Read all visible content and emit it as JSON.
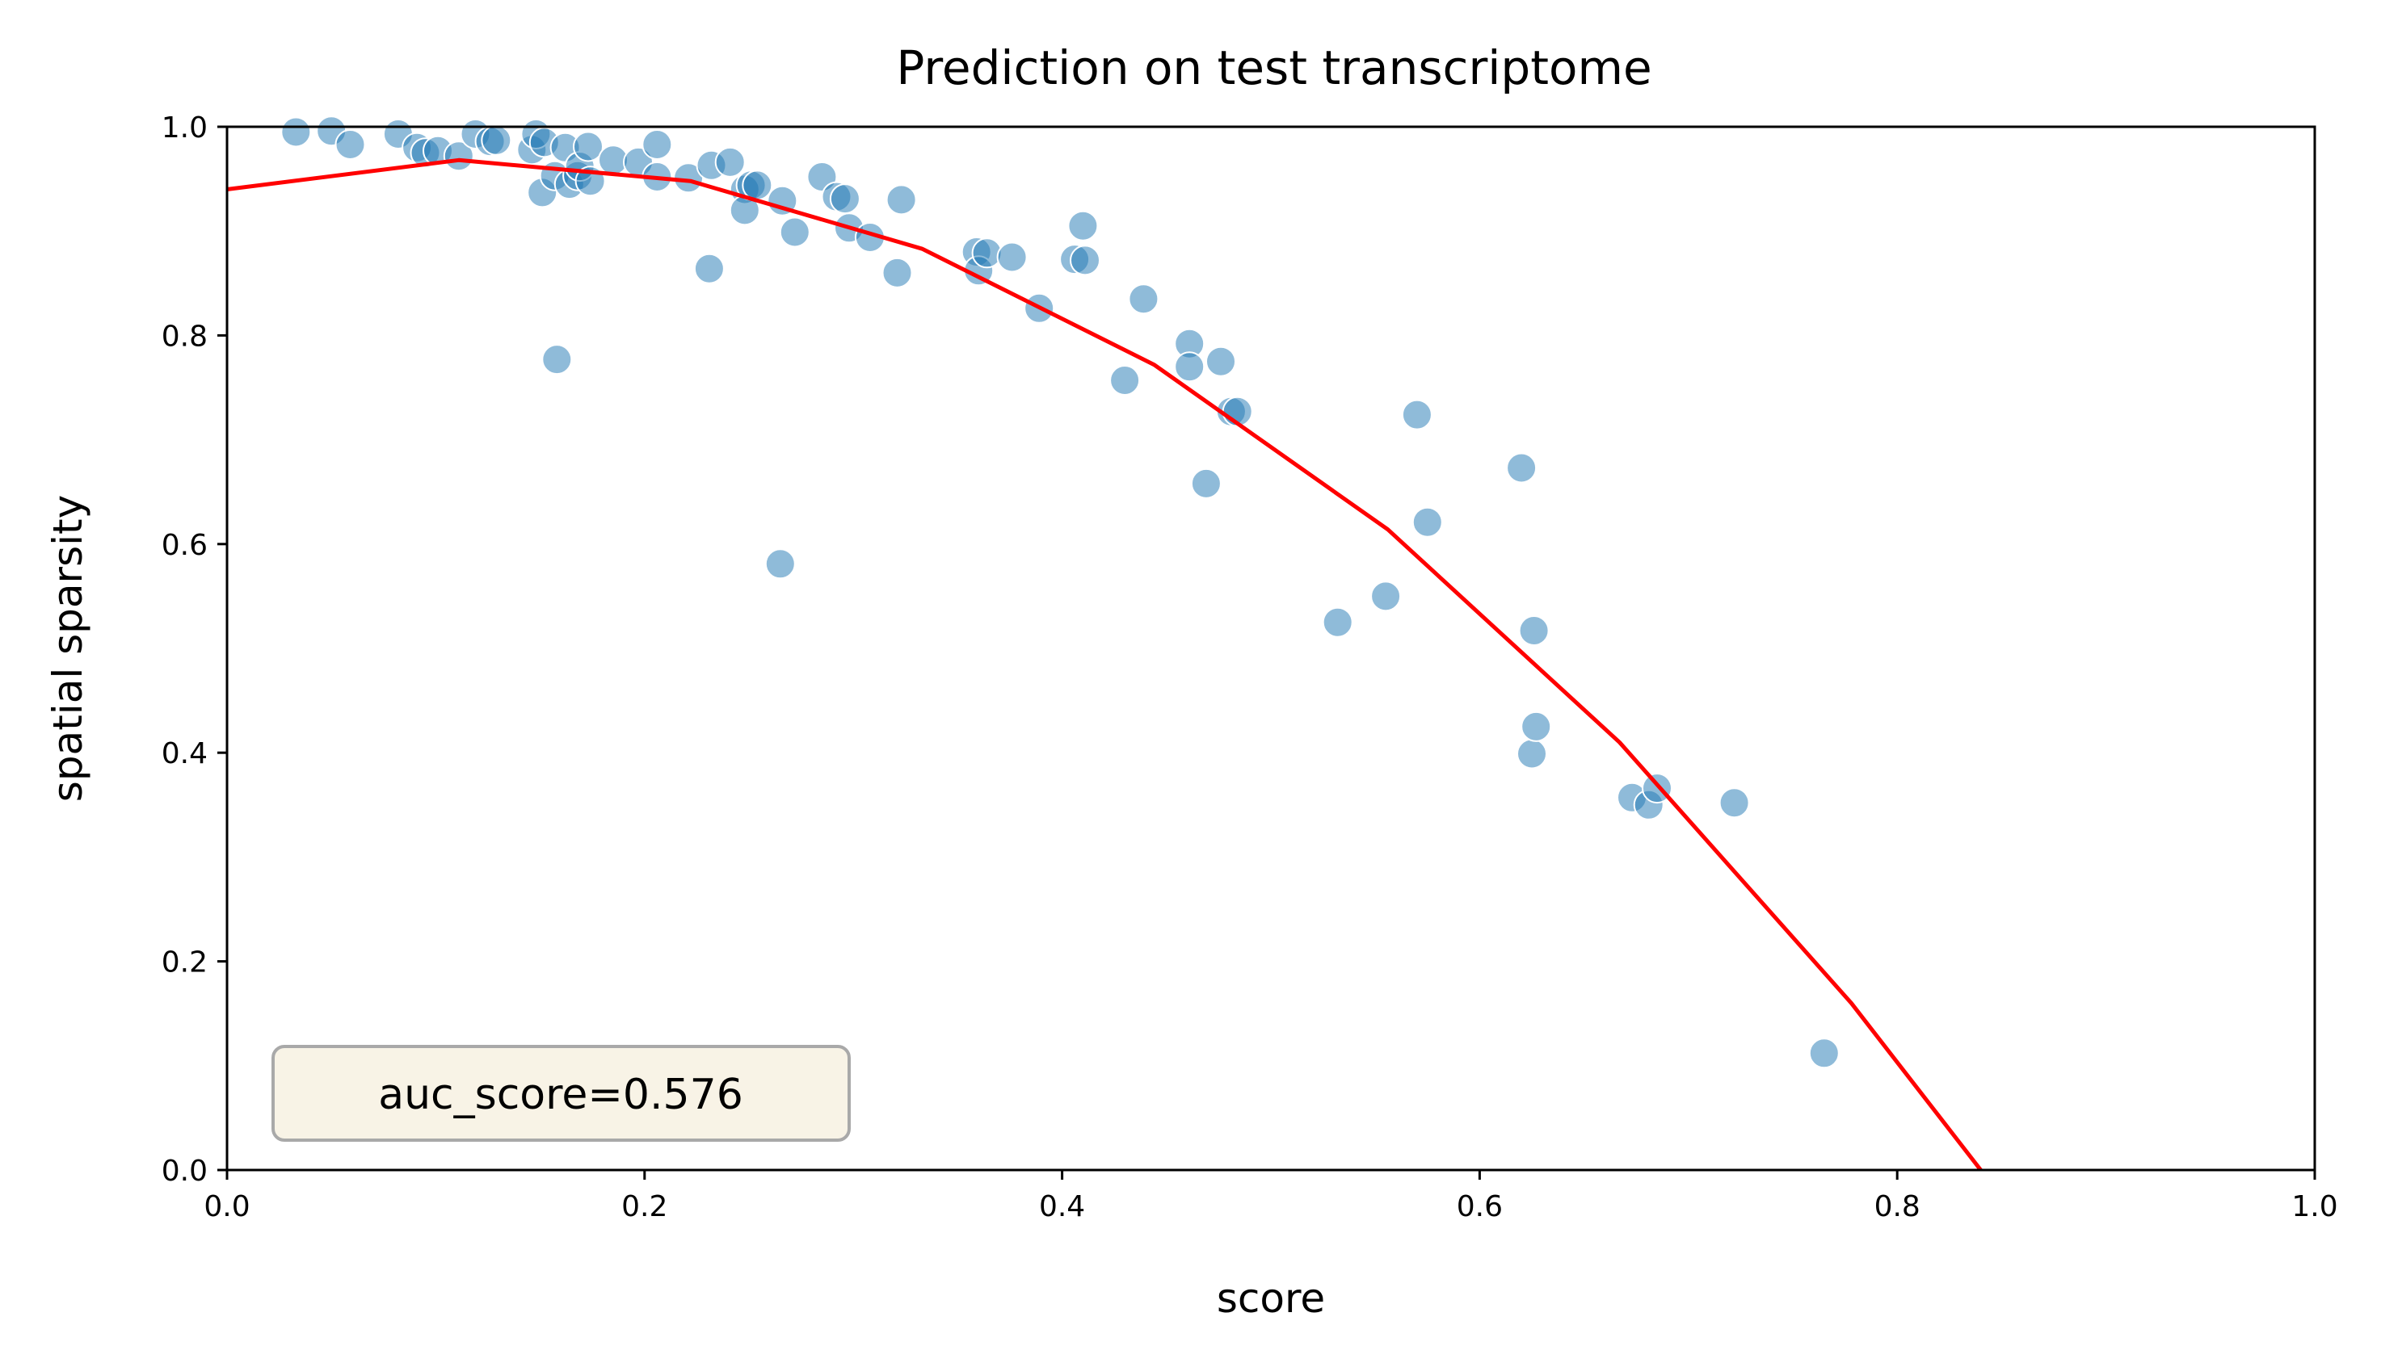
{
  "chart_data": {
    "type": "scatter",
    "title": "Prediction on test transcriptome",
    "xlabel": "score",
    "ylabel": "spatial sparsity",
    "xlim": [
      0.0,
      1.0
    ],
    "ylim": [
      0.0,
      1.0
    ],
    "x_ticks": [
      "0.0",
      "0.2",
      "0.4",
      "0.6",
      "0.8",
      "1.0"
    ],
    "y_ticks": [
      "0.0",
      "0.2",
      "0.4",
      "0.6",
      "0.8",
      "1.0"
    ],
    "grid": false,
    "legend": false,
    "annotation": "auc_score=0.576",
    "annotation_placement": "bottom-left",
    "scatter_color": "#1f77b4",
    "line_color": "#ff0000",
    "annotation_box_color": "#f8f3e6",
    "series": [
      {
        "kind": "scatter",
        "points": [
          [
            0.033,
            0.995
          ],
          [
            0.05,
            0.996
          ],
          [
            0.059,
            0.983
          ],
          [
            0.082,
            0.993
          ],
          [
            0.091,
            0.98
          ],
          [
            0.095,
            0.975
          ],
          [
            0.101,
            0.977
          ],
          [
            0.111,
            0.972
          ],
          [
            0.119,
            0.993
          ],
          [
            0.126,
            0.986
          ],
          [
            0.129,
            0.987
          ],
          [
            0.146,
            0.978
          ],
          [
            0.148,
            0.993
          ],
          [
            0.151,
            0.937
          ],
          [
            0.152,
            0.985
          ],
          [
            0.157,
            0.953
          ],
          [
            0.158,
            0.777
          ],
          [
            0.162,
            0.98
          ],
          [
            0.164,
            0.945
          ],
          [
            0.168,
            0.953
          ],
          [
            0.169,
            0.962
          ],
          [
            0.173,
            0.981
          ],
          [
            0.174,
            0.948
          ],
          [
            0.185,
            0.968
          ],
          [
            0.197,
            0.966
          ],
          [
            0.206,
            0.983
          ],
          [
            0.206,
            0.952
          ],
          [
            0.221,
            0.951
          ],
          [
            0.231,
            0.864
          ],
          [
            0.232,
            0.963
          ],
          [
            0.241,
            0.966
          ],
          [
            0.248,
            0.94
          ],
          [
            0.248,
            0.92
          ],
          [
            0.251,
            0.944
          ],
          [
            0.254,
            0.944
          ],
          [
            0.265,
            0.581
          ],
          [
            0.266,
            0.929
          ],
          [
            0.272,
            0.899
          ],
          [
            0.285,
            0.952
          ],
          [
            0.292,
            0.933
          ],
          [
            0.296,
            0.931
          ],
          [
            0.298,
            0.903
          ],
          [
            0.308,
            0.894
          ],
          [
            0.321,
            0.86
          ],
          [
            0.323,
            0.93
          ],
          [
            0.359,
            0.88
          ],
          [
            0.36,
            0.862
          ],
          [
            0.364,
            0.879
          ],
          [
            0.376,
            0.875
          ],
          [
            0.389,
            0.826
          ],
          [
            0.406,
            0.873
          ],
          [
            0.41,
            0.905
          ],
          [
            0.411,
            0.872
          ],
          [
            0.43,
            0.757
          ],
          [
            0.439,
            0.835
          ],
          [
            0.461,
            0.792
          ],
          [
            0.461,
            0.77
          ],
          [
            0.469,
            0.658
          ],
          [
            0.476,
            0.775
          ],
          [
            0.481,
            0.727
          ],
          [
            0.484,
            0.727
          ],
          [
            0.532,
            0.525
          ],
          [
            0.555,
            0.55
          ],
          [
            0.57,
            0.724
          ],
          [
            0.575,
            0.621
          ],
          [
            0.62,
            0.673
          ],
          [
            0.625,
            0.399
          ],
          [
            0.626,
            0.517
          ],
          [
            0.627,
            0.425
          ],
          [
            0.673,
            0.357
          ],
          [
            0.681,
            0.35
          ],
          [
            0.685,
            0.366
          ],
          [
            0.722,
            0.352
          ],
          [
            0.765,
            0.112
          ]
        ]
      },
      {
        "kind": "line",
        "x": [
          0.0,
          0.111,
          0.222,
          0.333,
          0.444,
          0.556,
          0.667,
          0.778,
          0.84
        ],
        "y": [
          0.94,
          0.968,
          0.948,
          0.883,
          0.772,
          0.614,
          0.41,
          0.16,
          0.0
        ]
      }
    ]
  }
}
